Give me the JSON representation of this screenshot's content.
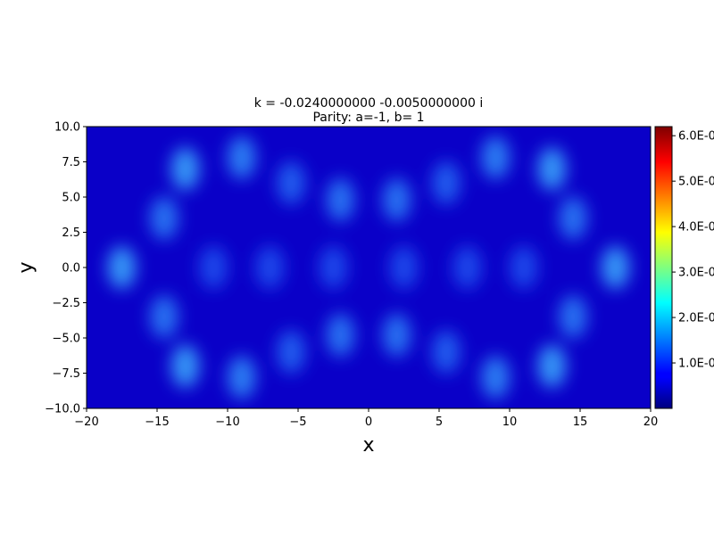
{
  "chart_data": {
    "type": "heatmap",
    "title_line1": "k = -0.0240000000 -0.0050000000 i",
    "title_line2": "Parity: a=-1, b= 1",
    "xlabel": "x",
    "ylabel": "y",
    "xlim": [
      -20,
      20
    ],
    "ylim": [
      -10,
      10
    ],
    "xticks": [
      -20,
      -15,
      -10,
      -5,
      0,
      5,
      10,
      15,
      20
    ],
    "xtick_labels": [
      "−20",
      "−15",
      "−10",
      "−5",
      "0",
      "5",
      "10",
      "15",
      "20"
    ],
    "yticks": [
      -10,
      -7.5,
      -5,
      -2.5,
      0,
      2.5,
      5,
      7.5,
      10
    ],
    "ytick_labels": [
      "−10.0",
      "−7.5",
      "−5.0",
      "−2.5",
      "0.0",
      "2.5",
      "5.0",
      "7.5",
      "10.0"
    ],
    "colorbar": {
      "colormap": "jet",
      "range": [
        0,
        6.2e-06
      ],
      "ticks": [
        1e-06,
        2e-06,
        3e-06,
        4e-06,
        5e-06,
        6e-06
      ],
      "tick_labels": [
        "1.0E-0",
        "2.0E-0",
        "3.0E-0",
        "4.0E-0",
        "5.0E-0",
        "6.0E-0"
      ]
    },
    "hotspots": [
      {
        "x": -17.5,
        "y": 0,
        "value": 1.2e-06
      },
      {
        "x": 17.5,
        "y": 0,
        "value": 1.2e-06
      },
      {
        "x": -13.0,
        "y": 7.0,
        "value": 1.2e-06
      },
      {
        "x": 13.0,
        "y": 7.0,
        "value": 1.2e-06
      },
      {
        "x": -13.0,
        "y": -7.0,
        "value": 1.2e-06
      },
      {
        "x": 13.0,
        "y": -7.0,
        "value": 1.2e-06
      },
      {
        "x": -9.0,
        "y": 7.8,
        "value": 1e-06
      },
      {
        "x": 9.0,
        "y": 7.8,
        "value": 1e-06
      },
      {
        "x": -9.0,
        "y": -7.8,
        "value": 1e-06
      },
      {
        "x": 9.0,
        "y": -7.8,
        "value": 1e-06
      },
      {
        "x": -14.5,
        "y": 3.5,
        "value": 9e-07
      },
      {
        "x": 14.5,
        "y": 3.5,
        "value": 9e-07
      },
      {
        "x": -14.5,
        "y": -3.5,
        "value": 9e-07
      },
      {
        "x": 14.5,
        "y": -3.5,
        "value": 9e-07
      },
      {
        "x": -2.0,
        "y": 4.8,
        "value": 9e-07
      },
      {
        "x": 2.0,
        "y": 4.8,
        "value": 9e-07
      },
      {
        "x": -2.0,
        "y": -4.8,
        "value": 9e-07
      },
      {
        "x": 2.0,
        "y": -4.8,
        "value": 9e-07
      },
      {
        "x": -5.5,
        "y": 6.0,
        "value": 7e-07
      },
      {
        "x": 5.5,
        "y": 6.0,
        "value": 7e-07
      },
      {
        "x": -5.5,
        "y": -6.0,
        "value": 7e-07
      },
      {
        "x": 5.5,
        "y": -6.0,
        "value": 7e-07
      },
      {
        "x": -11.0,
        "y": 0,
        "value": 5e-07
      },
      {
        "x": 11.0,
        "y": 0,
        "value": 5e-07
      },
      {
        "x": -7.0,
        "y": 0,
        "value": 5e-07
      },
      {
        "x": 7.0,
        "y": 0,
        "value": 5e-07
      },
      {
        "x": -2.5,
        "y": 0,
        "value": 5e-07
      },
      {
        "x": 2.5,
        "y": 0,
        "value": 5e-07
      }
    ]
  }
}
